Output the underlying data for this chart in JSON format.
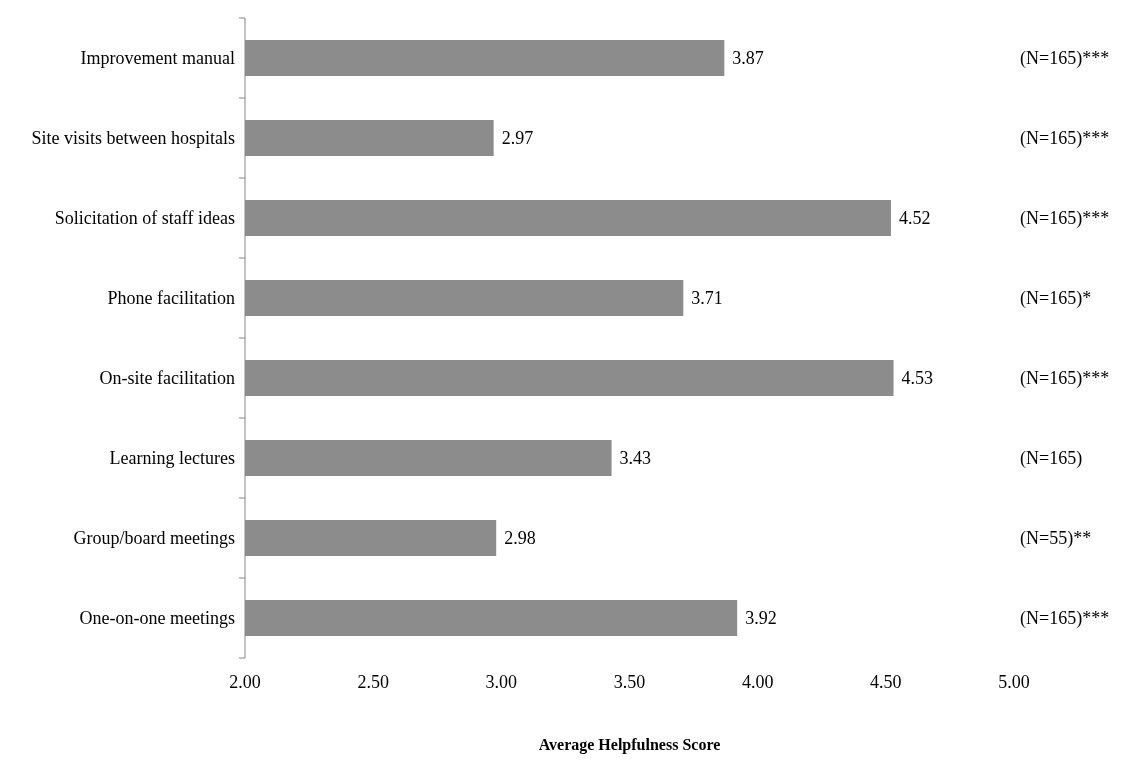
{
  "chart_data": {
    "type": "bar",
    "orientation": "horizontal",
    "xlabel": "Average Helpfulness Score",
    "categories": [
      "Improvement manual",
      "Site visits between hospitals",
      "Solicitation of staff ideas",
      "Phone facilitation",
      "On-site facilitation",
      "Learning lectures",
      "Group/board meetings",
      "One-on-one meetings"
    ],
    "values": [
      3.87,
      2.97,
      4.52,
      3.71,
      4.53,
      3.43,
      2.98,
      3.92
    ],
    "color": "#8c8c8c",
    "data_labels": true,
    "xlim": [
      2,
      5
    ],
    "xticks": [
      {
        "value": 2,
        "label": "2.00"
      },
      {
        "value": 2.5,
        "label": "2.50"
      },
      {
        "value": 3,
        "label": "3.00"
      },
      {
        "value": 3.5,
        "label": "3.50"
      },
      {
        "value": 4,
        "label": "4.00"
      },
      {
        "value": 4.5,
        "label": "4.50"
      },
      {
        "value": 5,
        "label": "5.00"
      }
    ],
    "grid": false,
    "annotations": [
      "(N=165)***",
      "(N=165)***",
      "(N=165)***",
      "(N=165)*",
      "(N=165)***",
      "(N=165)",
      "(N=55)**",
      "(N=165)***"
    ]
  }
}
